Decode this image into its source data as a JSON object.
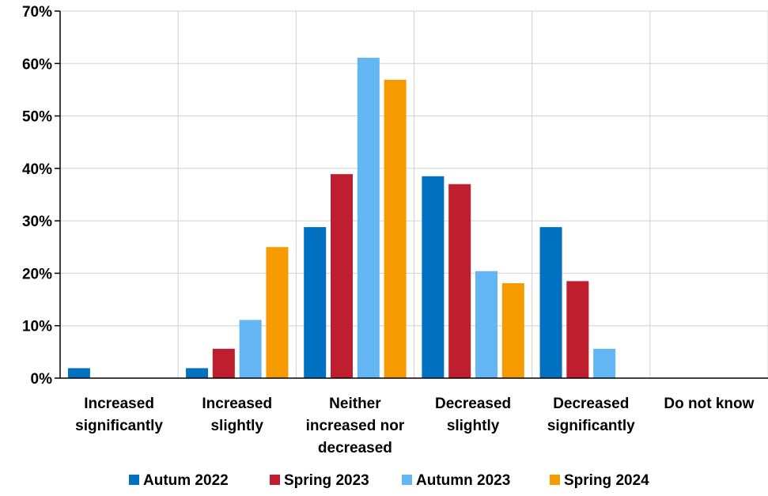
{
  "chart_data": {
    "type": "bar",
    "categories": [
      [
        "Increased",
        "significantly"
      ],
      [
        "Increased",
        "slightly"
      ],
      [
        "Neither",
        "increased nor",
        "decreased"
      ],
      [
        "Decreased",
        "slightly"
      ],
      [
        "Decreased",
        "significantly"
      ],
      [
        "Do not know"
      ]
    ],
    "series": [
      {
        "name": "Autum 2022",
        "color": "#0070C0",
        "values": [
          1.9,
          1.9,
          28.8,
          38.5,
          28.8,
          0
        ]
      },
      {
        "name": "Spring 2023",
        "color": "#BE1E2D",
        "values": [
          0,
          5.6,
          38.9,
          37.0,
          18.5,
          0
        ]
      },
      {
        "name": "Autumn 2023",
        "color": "#63B5F4",
        "values": [
          0,
          11.1,
          61.1,
          20.4,
          5.6,
          0
        ]
      },
      {
        "name": "Spring 2024",
        "color": "#F59B00",
        "values": [
          0,
          25.0,
          56.9,
          18.1,
          0,
          0
        ]
      }
    ],
    "yticks": [
      "0%",
      "10%",
      "20%",
      "30%",
      "40%",
      "50%",
      "60%",
      "70%"
    ],
    "ylim": [
      0,
      70
    ],
    "grid": true,
    "legend": "bottom"
  }
}
